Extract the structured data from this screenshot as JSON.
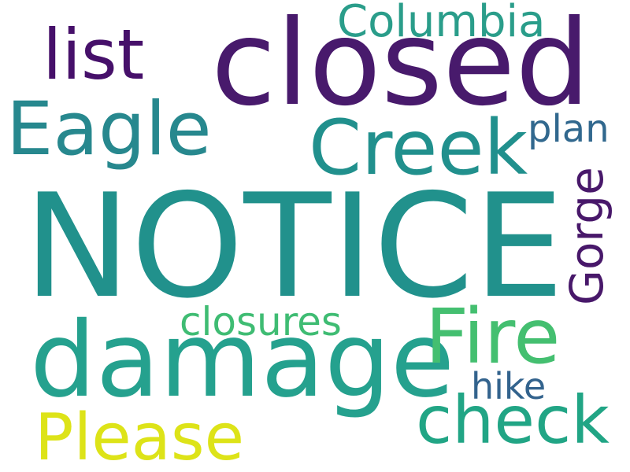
{
  "words": [
    {
      "id": "notice",
      "text": "NOTICE",
      "color": "#21918c"
    },
    {
      "id": "closed",
      "text": "closed",
      "color": "#481a6c"
    },
    {
      "id": "damage",
      "text": "damage",
      "color": "#25a18e"
    },
    {
      "id": "creek",
      "text": "Creek",
      "color": "#21908d"
    },
    {
      "id": "eagle",
      "text": "Eagle",
      "color": "#27888e"
    },
    {
      "id": "fire",
      "text": "Fire",
      "color": "#44bf70"
    },
    {
      "id": "check",
      "text": "check",
      "color": "#21a585"
    },
    {
      "id": "please",
      "text": "Please",
      "color": "#dde318"
    },
    {
      "id": "columbia",
      "text": "Columbia",
      "color": "#2a9d8a"
    },
    {
      "id": "list",
      "text": "list",
      "color": "#46106a"
    },
    {
      "id": "gorge",
      "text": "Gorge",
      "color": "#48186a"
    },
    {
      "id": "closures",
      "text": "closures",
      "color": "#3fbc73"
    },
    {
      "id": "plan",
      "text": "plan",
      "color": "#31688e"
    },
    {
      "id": "hike",
      "text": "hike",
      "color": "#33638d"
    }
  ]
}
